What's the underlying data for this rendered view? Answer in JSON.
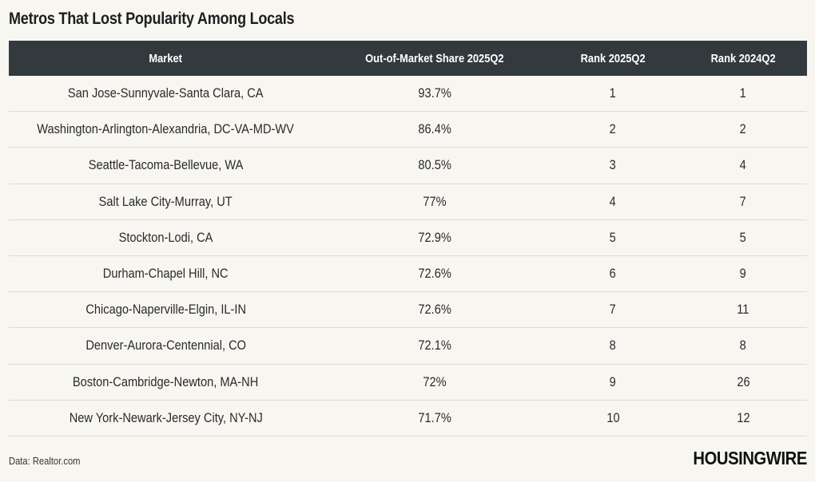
{
  "title": "Metros That Lost Popularity Among Locals",
  "table": {
    "headers": [
      "Market",
      "Out-of-Market Share 2025Q2",
      "Rank 2025Q2",
      "Rank 2024Q2"
    ],
    "rows": [
      [
        "San Jose-Sunnyvale-Santa Clara, CA",
        "93.7%",
        "1",
        "1"
      ],
      [
        "Washington-Arlington-Alexandria, DC-VA-MD-WV",
        "86.4%",
        "2",
        "2"
      ],
      [
        "Seattle-Tacoma-Bellevue, WA",
        "80.5%",
        "3",
        "4"
      ],
      [
        "Salt Lake City-Murray, UT",
        "77%",
        "4",
        "7"
      ],
      [
        "Stockton-Lodi, CA",
        "72.9%",
        "5",
        "5"
      ],
      [
        "Durham-Chapel Hill, NC",
        "72.6%",
        "6",
        "9"
      ],
      [
        "Chicago-Naperville-Elgin, IL-IN",
        "72.6%",
        "7",
        "11"
      ],
      [
        "Denver-Aurora-Centennial, CO",
        "72.1%",
        "8",
        "8"
      ],
      [
        "Boston-Cambridge-Newton, MA-NH",
        "72%",
        "9",
        "26"
      ],
      [
        "New York-Newark-Jersey City, NY-NJ",
        "71.7%",
        "10",
        "12"
      ]
    ]
  },
  "footer": {
    "source": "Data: Realtor.com",
    "logo": "HOUSINGWIRE"
  },
  "colors": {
    "background": "#f8f6f1",
    "header_background": "#333a3e",
    "header_text": "#ffffff",
    "row_divider": "#dcdad5"
  }
}
